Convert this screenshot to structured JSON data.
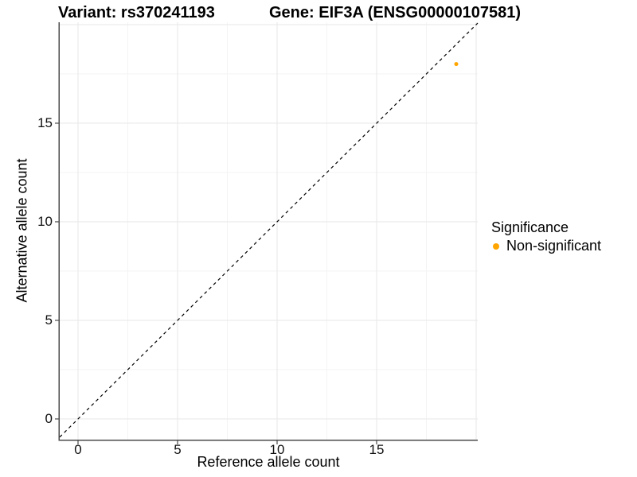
{
  "colors": {
    "background": "#FFFFFF",
    "point": "#FFA500",
    "grid_major": "#E9E9E9",
    "grid_minor": "#F3F3F3",
    "axis": "#4A4A4A",
    "dashed_line": "#000000",
    "text": "#000000"
  },
  "legend": {
    "title": "Significance",
    "items": [
      {
        "label": "Non-significant",
        "color": "#FFA500"
      }
    ]
  },
  "chart_data": {
    "type": "scatter",
    "title_left": "Variant: rs370241193",
    "title_right": "Gene: EIF3A (ENSG00000107581)",
    "xlabel": "Reference allele count",
    "ylabel": "Alternative allele count",
    "xlim": [
      -0.92,
      20.08
    ],
    "ylim": [
      -1.05,
      20.12
    ],
    "x_ticks": [
      0,
      5,
      10,
      15
    ],
    "y_ticks": [
      0,
      5,
      10,
      15
    ],
    "grid_major": [
      0,
      5,
      10,
      15,
      20
    ],
    "grid_minor": [
      2.5,
      7.5,
      12.5,
      17.5
    ],
    "grid": true,
    "legend_position": "right",
    "series": [
      {
        "name": "Non-significant",
        "color": "#FFA500",
        "points": [
          {
            "x": 19,
            "y": 18
          }
        ]
      }
    ],
    "reference_line": {
      "type": "identity",
      "style": "dashed",
      "color": "#000000"
    }
  }
}
